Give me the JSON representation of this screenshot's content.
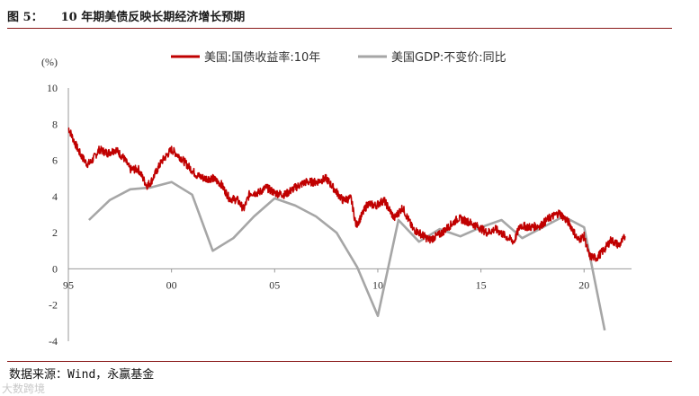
{
  "header": {
    "figure_label": "图 5：",
    "title": "10 年期美债反映长期经济增长预期"
  },
  "footer": {
    "source": "数据来源：Wind，永赢基金",
    "watermark": "大数跨境"
  },
  "colors": {
    "bond": "#c00000",
    "gdp": "#a6a6a6",
    "rule": "#8a1a1a"
  },
  "chart_data": {
    "type": "line",
    "title": "",
    "ylabel": "(%)",
    "ylim": [
      -4,
      10
    ],
    "yticks": [
      -4,
      -2,
      0,
      2,
      4,
      6,
      8,
      10
    ],
    "xlim": [
      1995.0,
      2022.3
    ],
    "xticks": [
      {
        "label": "95",
        "value": 1995
      },
      {
        "label": "00",
        "value": 2000
      },
      {
        "label": "05",
        "value": 2005
      },
      {
        "label": "10",
        "value": 2010
      },
      {
        "label": "15",
        "value": 2015
      },
      {
        "label": "20",
        "value": 2020
      }
    ],
    "grid": false,
    "legend": "top",
    "series": [
      {
        "name": "美国:国债收益率:10年",
        "x": [
          1995.0,
          1995.3,
          1995.6,
          1995.9,
          1996.1,
          1996.5,
          1996.9,
          1997.3,
          1997.7,
          1998.0,
          1998.4,
          1998.8,
          1999.0,
          1999.5,
          2000.0,
          2000.4,
          2000.8,
          2001.2,
          2001.6,
          2002.0,
          2002.4,
          2002.8,
          2003.2,
          2003.5,
          2003.8,
          2004.2,
          2004.6,
          2005.0,
          2005.5,
          2006.0,
          2006.5,
          2007.0,
          2007.5,
          2007.9,
          2008.3,
          2008.7,
          2008.95,
          2009.2,
          2009.5,
          2009.9,
          2010.3,
          2010.8,
          2011.2,
          2011.7,
          2012.0,
          2012.5,
          2013.0,
          2013.5,
          2013.9,
          2014.4,
          2014.9,
          2015.3,
          2015.7,
          2016.2,
          2016.6,
          2016.9,
          2017.4,
          2017.9,
          2018.3,
          2018.8,
          2019.3,
          2019.7,
          2020.0,
          2020.25,
          2020.6,
          2021.0,
          2021.3,
          2021.7,
          2022.0
        ],
        "y": [
          7.8,
          7.0,
          6.3,
          5.8,
          5.9,
          6.6,
          6.4,
          6.6,
          6.1,
          5.5,
          5.5,
          4.6,
          4.8,
          5.9,
          6.6,
          6.2,
          5.7,
          5.2,
          5.0,
          5.0,
          4.7,
          3.9,
          3.8,
          3.3,
          4.2,
          4.2,
          4.5,
          4.2,
          4.1,
          4.5,
          4.8,
          4.8,
          5.0,
          4.4,
          3.8,
          3.9,
          2.4,
          2.9,
          3.6,
          3.5,
          3.8,
          2.8,
          3.4,
          2.2,
          2.0,
          1.6,
          1.9,
          2.4,
          2.8,
          2.6,
          2.3,
          2.0,
          2.2,
          1.8,
          1.5,
          2.4,
          2.3,
          2.4,
          2.8,
          3.1,
          2.5,
          1.6,
          1.8,
          0.7,
          0.6,
          1.1,
          1.6,
          1.3,
          1.8
        ]
      },
      {
        "name": "美国GDP:不变价:同比",
        "x": [
          1996,
          1997,
          1998,
          1999,
          2000,
          2001,
          2002,
          2003,
          2004,
          2005,
          2006,
          2007,
          2008,
          2009,
          2010,
          2011,
          2012,
          2013,
          2014,
          2015,
          2016,
          2017,
          2018,
          2019,
          2020,
          2021
        ],
        "y": [
          2.7,
          3.8,
          4.4,
          4.5,
          4.8,
          4.1,
          1.0,
          1.7,
          2.9,
          3.9,
          3.5,
          2.9,
          2.0,
          0.1,
          -2.6,
          2.7,
          1.5,
          2.2,
          1.8,
          2.3,
          2.7,
          1.7,
          2.3,
          2.9,
          2.3,
          -3.4
        ]
      }
    ]
  }
}
